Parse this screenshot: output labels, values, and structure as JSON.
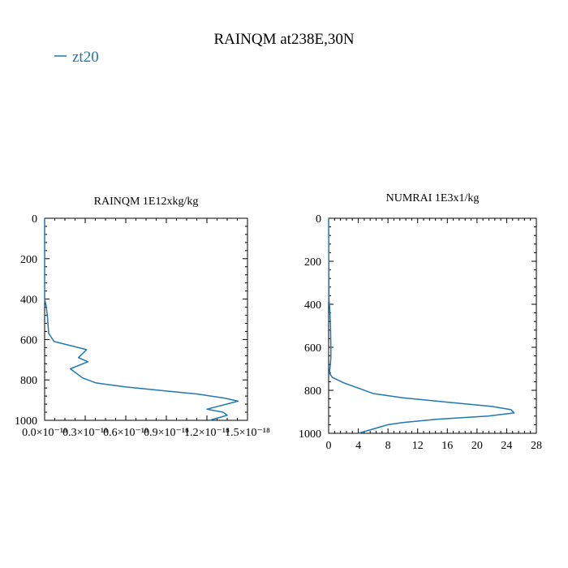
{
  "figure": {
    "title": "RAINQM at238E,30N",
    "legend": {
      "label": "zt20",
      "color": "#1f77b4",
      "placement": "top-left"
    }
  },
  "chart_data": [
    {
      "type": "line",
      "title": "RAINQM  1E12xkg/kg",
      "xlabel": "",
      "ylabel": "",
      "xlim": [
        0.0,
        1.5e-18
      ],
      "ylim": [
        1000,
        0
      ],
      "y_inverted": true,
      "x_ticks": [
        0.0,
        3e-19,
        6e-19,
        9e-19,
        1.2e-18,
        1.5e-18
      ],
      "x_tick_labels": [
        "0.0×10⁻¹⁸",
        "0.3×10⁻¹⁸",
        "0.6×10⁻¹⁸",
        "0.9×10⁻¹⁸",
        "1.2×10⁻¹⁸",
        "1.5×10⁻¹⁸"
      ],
      "y_ticks": [
        0,
        200,
        400,
        600,
        800,
        1000
      ],
      "y_tick_labels": [
        "0",
        "200",
        "400",
        "600",
        "800",
        "1000"
      ],
      "grid": false,
      "series": [
        {
          "name": "zt20",
          "color": "#1f77b4",
          "x": [
            0.0,
            0.0,
            1e-20,
            2e-20,
            3e-20,
            7e-20,
            3.1e-19,
            2.5e-19,
            3.2e-19,
            1.9e-19,
            2.8e-19,
            3.8e-19,
            6e-19,
            9e-19,
            1.13e-18,
            1.33e-18,
            1.43e-18,
            1.2e-18,
            1.32e-18,
            1.35e-18,
            1.22e-18
          ],
          "y": [
            0,
            400,
            430,
            480,
            570,
            610,
            650,
            690,
            710,
            745,
            790,
            815,
            835,
            855,
            870,
            890,
            905,
            945,
            960,
            975,
            1000
          ]
        }
      ]
    },
    {
      "type": "line",
      "title": "NUMRAI  1E3x1/kg",
      "xlabel": "",
      "ylabel": "",
      "xlim": [
        0,
        28
      ],
      "ylim": [
        1000,
        0
      ],
      "y_inverted": true,
      "x_ticks": [
        0,
        4,
        8,
        12,
        16,
        20,
        24,
        28
      ],
      "x_tick_labels": [
        "0",
        "4",
        "8",
        "12",
        "16",
        "20",
        "24",
        "28"
      ],
      "y_ticks": [
        0,
        200,
        400,
        600,
        800,
        1000
      ],
      "y_tick_labels": [
        "0",
        "200",
        "400",
        "600",
        "800",
        "1000"
      ],
      "grid": false,
      "series": [
        {
          "name": "zt20",
          "color": "#1f77b4",
          "x": [
            0.0,
            0.05,
            0.15,
            0.25,
            0.3,
            0.3,
            0.2,
            0.1,
            0.5,
            2.0,
            4.0,
            6.0,
            10.0,
            16.0,
            22.0,
            24.6,
            25.0,
            21.5,
            14.5,
            10.0,
            8.0,
            4.0
          ],
          "y": [
            0,
            380,
            420,
            500,
            600,
            650,
            690,
            720,
            740,
            765,
            790,
            815,
            835,
            855,
            875,
            890,
            905,
            920,
            935,
            950,
            960,
            1000
          ]
        }
      ]
    }
  ]
}
